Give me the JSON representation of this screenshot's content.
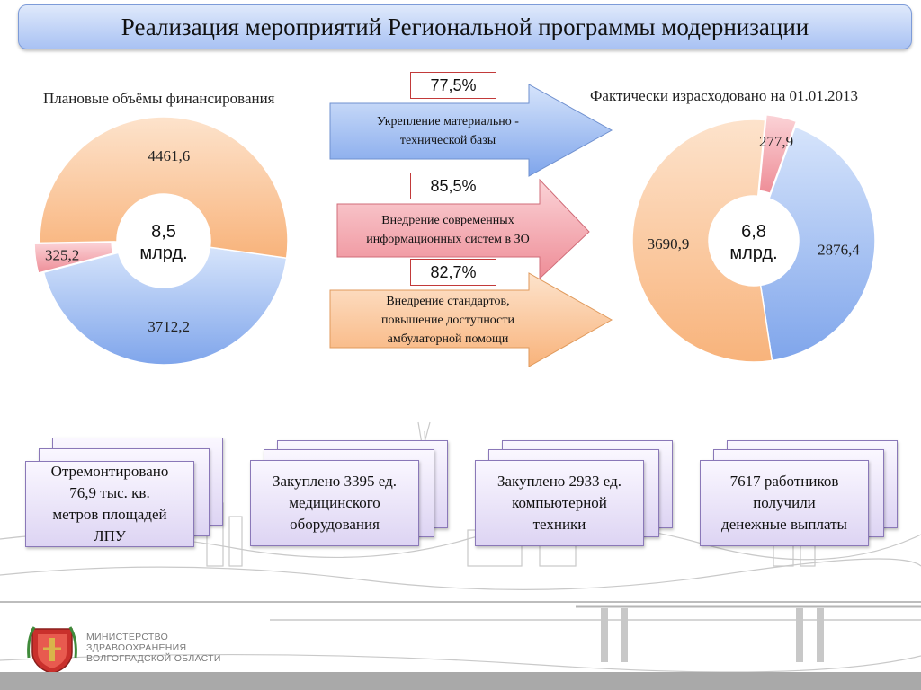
{
  "title": "Реализация мероприятий Региональной программы модернизации",
  "left_chart_title": "Плановые объёмы финансирования",
  "right_chart_title": "Фактически израсходовано  на 01.01.2013",
  "colors": {
    "blue": "#8fb1ee",
    "pink": "#f2a4ad",
    "peach": "#fbc79a"
  },
  "chart_data": [
    {
      "type": "pie",
      "title": "Плановые объёмы финансирования",
      "center_label": [
        "8,5",
        "млрд."
      ],
      "series": [
        {
          "value_label": "3712,2",
          "value": 3712.2,
          "color": "#8fb1ee"
        },
        {
          "value_label": "325,2",
          "value": 325.2,
          "color": "#f2a4ad"
        },
        {
          "value_label": "4461,6",
          "value": 4461.6,
          "color": "#fbc79a"
        }
      ]
    },
    {
      "type": "pie",
      "title": "Фактически израсходовано  на 01.01.2013",
      "center_label": [
        "6,8",
        "млрд."
      ],
      "series": [
        {
          "value_label": "2876,4",
          "value": 2876.4,
          "color": "#8fb1ee"
        },
        {
          "value_label": "3690,9",
          "value": 3690.9,
          "color": "#fbc79a"
        },
        {
          "value_label": "277,9",
          "value": 277.9,
          "color": "#f2a4ad"
        }
      ]
    }
  ],
  "arrows": [
    {
      "percent": "77,5%",
      "line1": "Укрепление материально -",
      "line2": "технической базы"
    },
    {
      "percent": "85,5%",
      "line1": "Внедрение современных",
      "line2": "информационных систем в ЗО"
    },
    {
      "percent": "82,7%",
      "line1": "Внедрение стандартов,",
      "line2": "повышение доступности",
      "line3": "амбулаторной помощи"
    }
  ],
  "cards": [
    {
      "line1": "Отремонтировано",
      "line2": "76,9 тыс. кв.",
      "line3": "метров площадей",
      "line4": "ЛПУ"
    },
    {
      "line1": "Закуплено 3395 ед.",
      "line2": "медицинского",
      "line3": "оборудования"
    },
    {
      "line1": "Закуплено 2933 ед.",
      "line2": "компьютерной",
      "line3": "техники"
    },
    {
      "line1": "7617 работников",
      "line2": "получили",
      "line3": "денежные выплаты"
    }
  ],
  "ministry": {
    "line1": "МИНИСТЕРСТВО",
    "line2": "ЗДРАВООХРАНЕНИЯ",
    "line3": "ВОЛГОГРАДСКОЙ ОБЛАСТИ"
  }
}
